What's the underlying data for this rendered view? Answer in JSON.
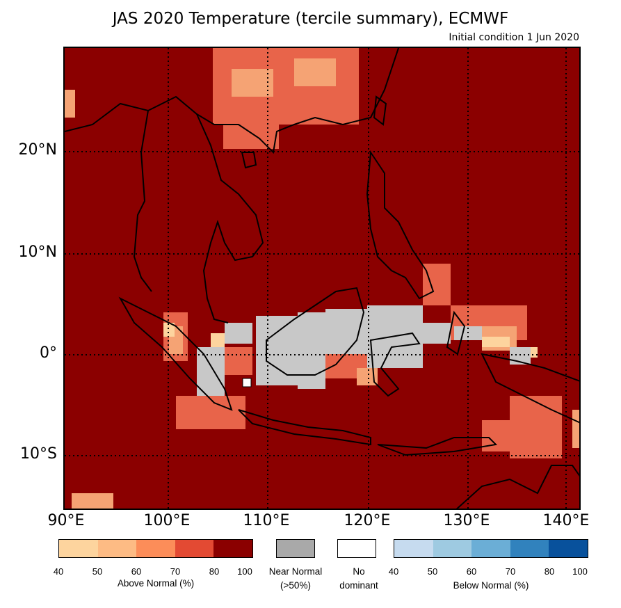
{
  "title": "JAS 2020 Temperature (tercile summary), ECMWF",
  "subtitle": "Initial condition 1 Jun 2020",
  "lat_labels": [
    "20°N",
    "10°N",
    "0°",
    "10°S"
  ],
  "lon_labels": [
    "90°E",
    "100°E",
    "110°E",
    "120°E",
    "130°E",
    "140°E"
  ],
  "legend": {
    "above": {
      "label": "Above Normal (%)",
      "ticks": [
        "40",
        "50",
        "60",
        "70",
        "80",
        "100"
      ],
      "colors": [
        "#fdd49e",
        "#fdbb84",
        "#fc8d59",
        "#e34a33",
        "#8b0000"
      ]
    },
    "near": {
      "label_line1": "Near Normal",
      "label_line2": "(>50%)",
      "color": "#a9a9a9"
    },
    "none": {
      "label_line1": "No",
      "label_line2": "dominant",
      "color": "#ffffff"
    },
    "below": {
      "label": "Below Normal (%)",
      "ticks": [
        "40",
        "50",
        "60",
        "70",
        "80",
        "100"
      ],
      "colors": [
        "#c6dbef",
        "#9ecae1",
        "#6baed6",
        "#3182bd",
        "#08519c"
      ]
    }
  },
  "map_colors": {
    "background": "#8b0000",
    "above_60_70": "#e8644a",
    "above_50_60": "#f5a374",
    "above_40_50": "#fdd49e",
    "near_normal": "#c8c8c8",
    "coastline": "#000000"
  }
}
